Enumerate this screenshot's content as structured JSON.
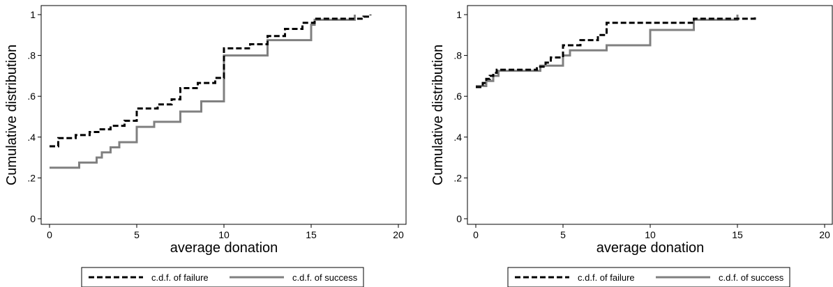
{
  "chart_data": [
    {
      "type": "line",
      "step": true,
      "xlabel": "average donation",
      "ylabel": "Cumulative distribution",
      "xlim": [
        0,
        20
      ],
      "ylim": [
        0,
        1
      ],
      "x_ticks": [
        0,
        5,
        10,
        15,
        20
      ],
      "y_ticks": [
        0,
        0.2,
        0.4,
        0.6,
        0.8,
        1
      ],
      "y_tick_labels": [
        "0",
        ".2",
        ".4",
        ".6",
        ".8",
        "1"
      ],
      "grid": false,
      "legend_position": "bottom",
      "series": [
        {
          "name": "c.d.f. of failure",
          "color": "#000000",
          "style": "dashed",
          "points": [
            [
              0,
              0.355
            ],
            [
              0.5,
              0.395
            ],
            [
              1.5,
              0.41
            ],
            [
              2.3,
              0.425
            ],
            [
              2.8,
              0.438
            ],
            [
              3.5,
              0.455
            ],
            [
              4.3,
              0.48
            ],
            [
              5,
              0.54
            ],
            [
              6.2,
              0.56
            ],
            [
              7,
              0.585
            ],
            [
              7.5,
              0.64
            ],
            [
              8.5,
              0.665
            ],
            [
              9.5,
              0.69
            ],
            [
              10,
              0.835
            ],
            [
              11.5,
              0.855
            ],
            [
              12.5,
              0.895
            ],
            [
              13.5,
              0.93
            ],
            [
              14.5,
              0.96
            ],
            [
              15.2,
              0.98
            ],
            [
              18,
              0.99
            ],
            [
              18.4,
              1.0
            ]
          ]
        },
        {
          "name": "c.d.f. of success",
          "color": "#808080",
          "style": "solid",
          "points": [
            [
              0,
              0.25
            ],
            [
              1.7,
              0.275
            ],
            [
              2.7,
              0.3
            ],
            [
              3,
              0.325
            ],
            [
              3.5,
              0.35
            ],
            [
              4,
              0.375
            ],
            [
              5,
              0.45
            ],
            [
              6,
              0.475
            ],
            [
              7.5,
              0.525
            ],
            [
              8.7,
              0.575
            ],
            [
              10,
              0.8
            ],
            [
              12.5,
              0.875
            ],
            [
              15,
              0.95
            ],
            [
              15.2,
              0.975
            ],
            [
              17.5,
              1.0
            ]
          ]
        }
      ]
    },
    {
      "type": "line",
      "step": true,
      "xlabel": "average donation",
      "ylabel": "Cumulative distribution",
      "xlim": [
        0,
        20
      ],
      "ylim": [
        0,
        1
      ],
      "x_ticks": [
        0,
        5,
        10,
        15,
        20
      ],
      "y_ticks": [
        0,
        0.2,
        0.4,
        0.6,
        0.8,
        1
      ],
      "y_tick_labels": [
        "0",
        ".2",
        ".4",
        ".6",
        ".8",
        "1"
      ],
      "grid": false,
      "legend_position": "bottom",
      "series": [
        {
          "name": "c.d.f. of failure",
          "color": "#000000",
          "style": "dashed",
          "points": [
            [
              0,
              0.645
            ],
            [
              0.4,
              0.665
            ],
            [
              0.6,
              0.685
            ],
            [
              0.8,
              0.7
            ],
            [
              1.0,
              0.715
            ],
            [
              1.2,
              0.73
            ],
            [
              3.5,
              0.745
            ],
            [
              4,
              0.765
            ],
            [
              4.3,
              0.79
            ],
            [
              5,
              0.85
            ],
            [
              6,
              0.875
            ],
            [
              7,
              0.9
            ],
            [
              7.5,
              0.96
            ],
            [
              12.5,
              0.98
            ],
            [
              16,
              1.0
            ]
          ]
        },
        {
          "name": "c.d.f. of success",
          "color": "#808080",
          "style": "solid",
          "points": [
            [
              0,
              0.65
            ],
            [
              0.6,
              0.675
            ],
            [
              1.0,
              0.7
            ],
            [
              1.3,
              0.725
            ],
            [
              3.7,
              0.75
            ],
            [
              5,
              0.8
            ],
            [
              5.4,
              0.825
            ],
            [
              7.5,
              0.85
            ],
            [
              10,
              0.925
            ],
            [
              12.5,
              0.975
            ],
            [
              15,
              1.0
            ]
          ]
        }
      ]
    }
  ]
}
